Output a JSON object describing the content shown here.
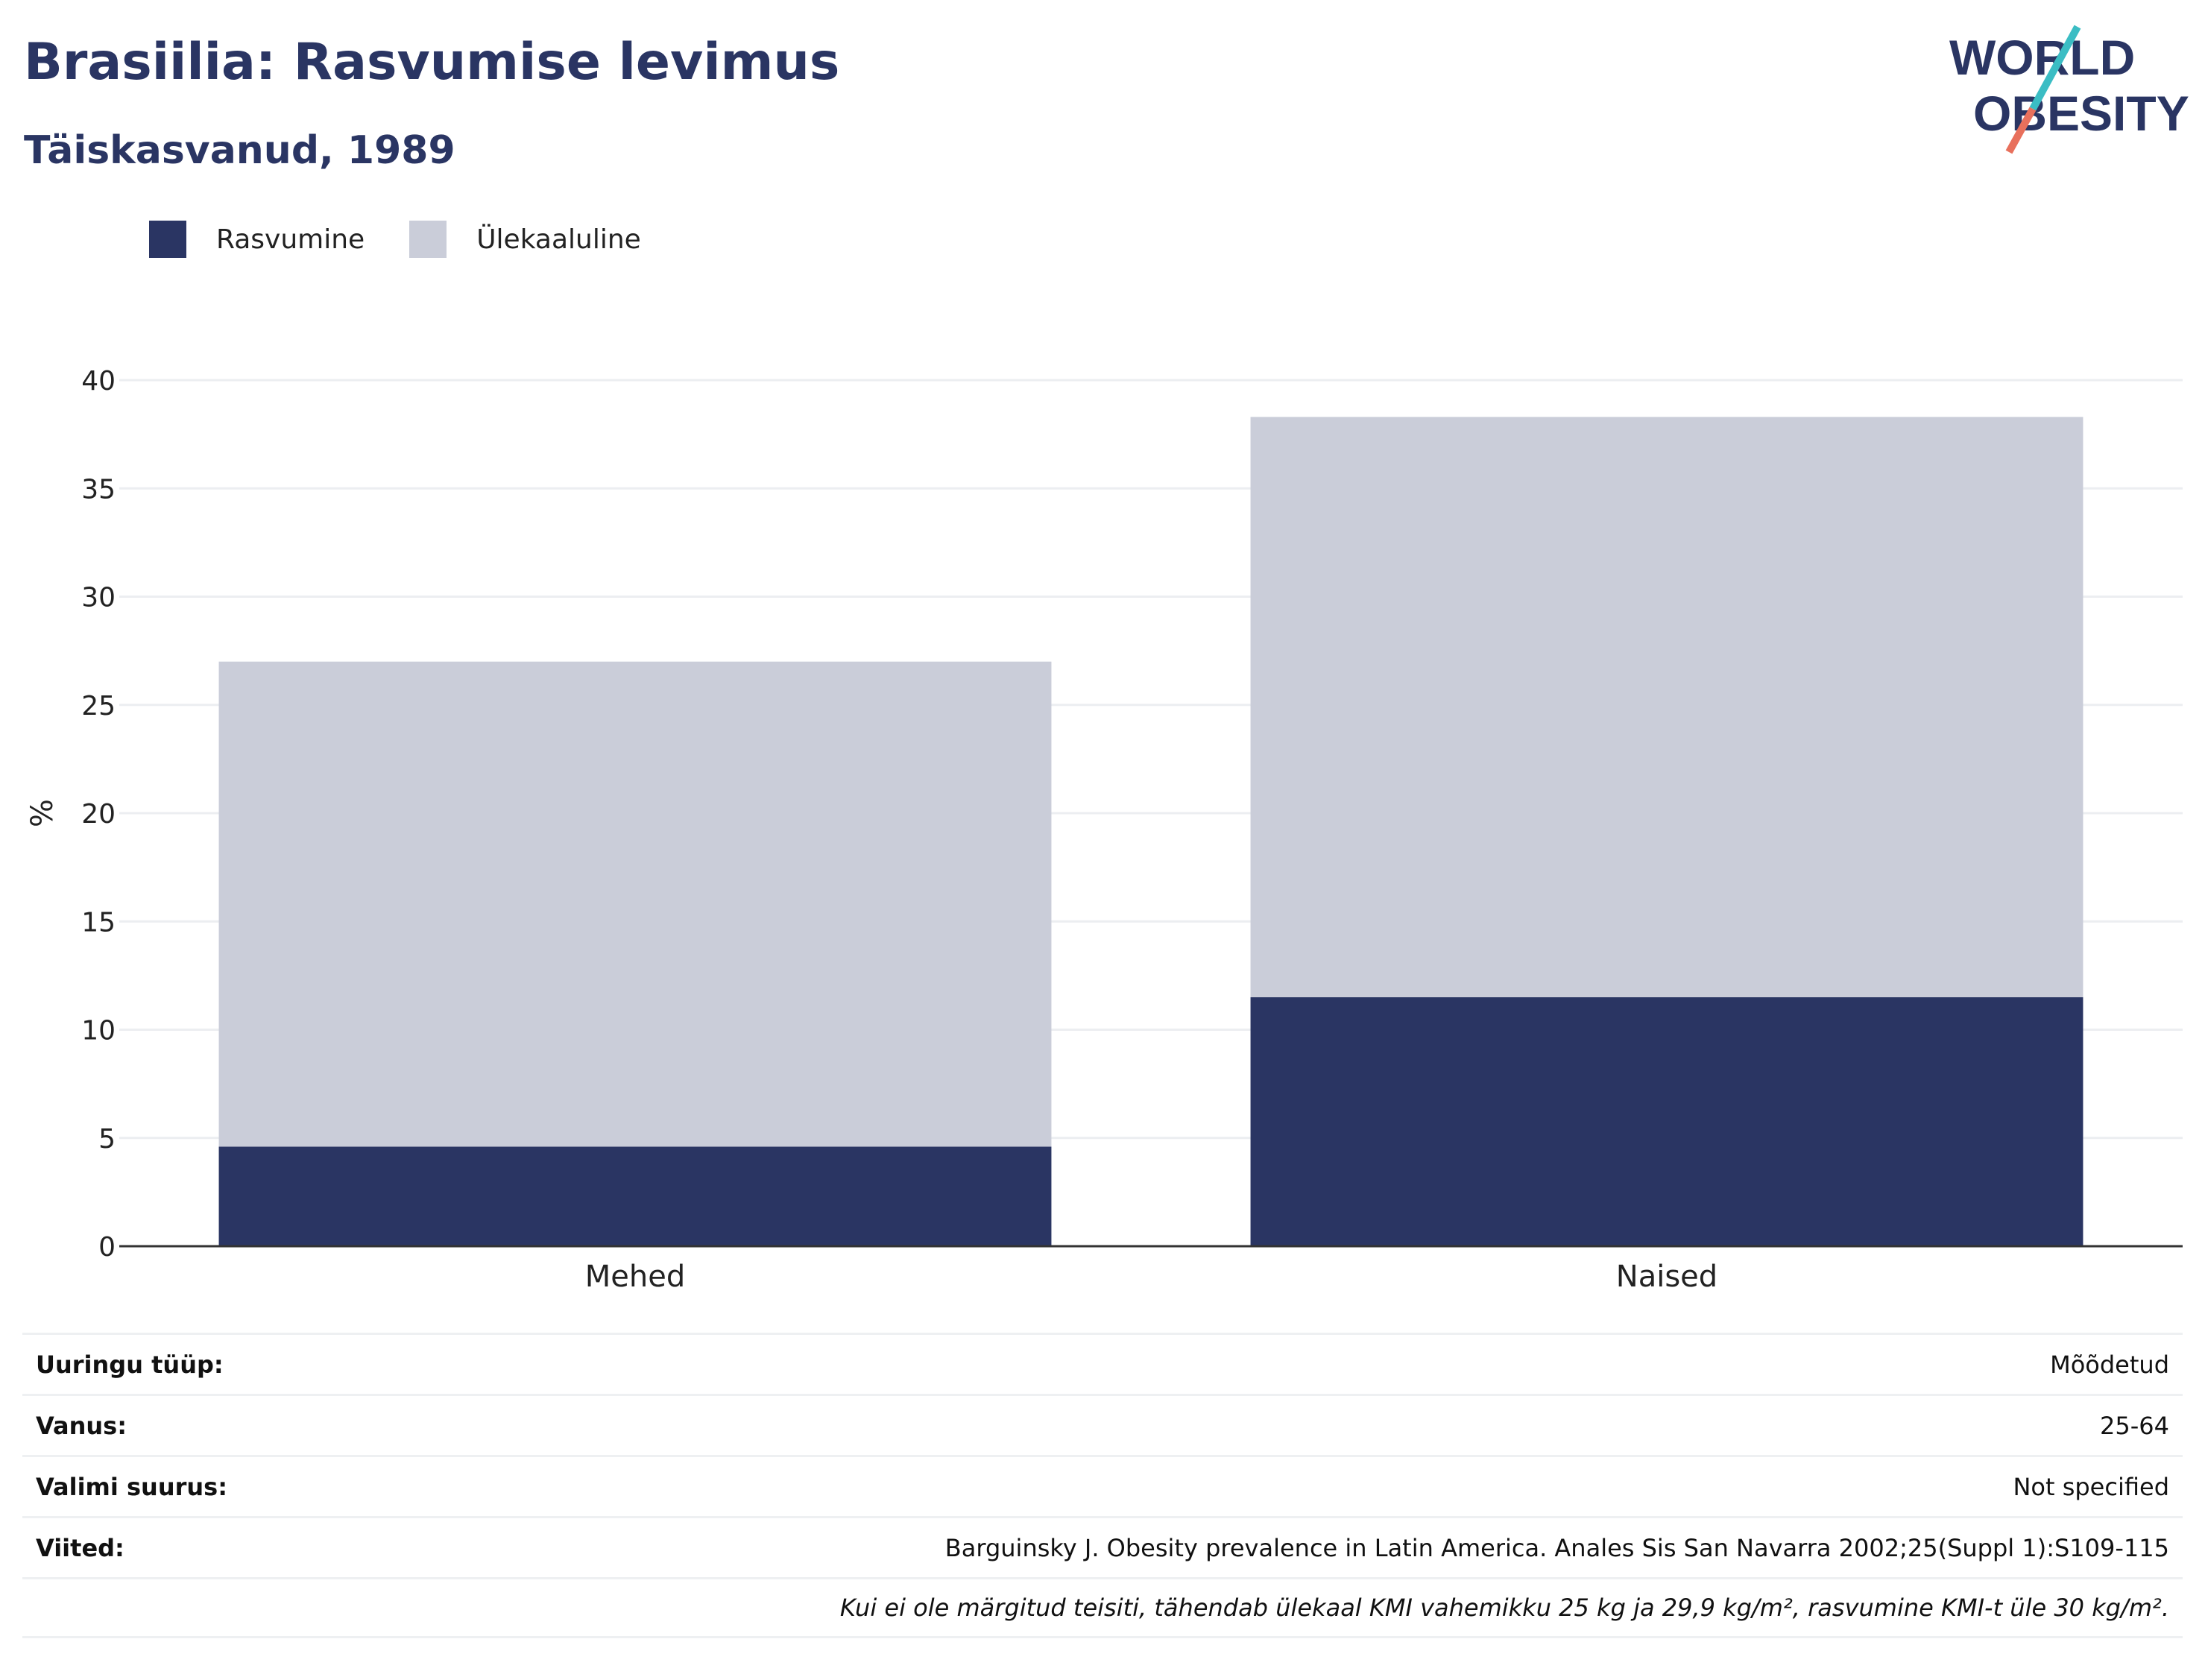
{
  "header": {
    "title": "Brasiilia: Rasvumise levimus",
    "subtitle": "Täiskasvanud, 1989",
    "logo_line1": "WORLD",
    "logo_line2": "OBESITY"
  },
  "colors": {
    "obesity": "#2a3563",
    "overweight": "#cacdd9",
    "title": "#2a3563",
    "logo_teal": "#3bbdc4",
    "logo_coral": "#e8705c"
  },
  "chart_data": {
    "type": "bar",
    "stacked": true,
    "categories": [
      "Mehed",
      "Naised"
    ],
    "series": [
      {
        "name": "Rasvumine",
        "values": [
          4.6,
          11.5
        ]
      },
      {
        "name": "Ülekaaluline",
        "values": [
          22.4,
          26.8
        ]
      }
    ],
    "ylabel": "%",
    "ylim": [
      0,
      40
    ],
    "yticks": [
      "0",
      "5",
      "10",
      "15",
      "20",
      "25",
      "30",
      "35",
      "40"
    ],
    "grid": true,
    "legend": "top-left"
  },
  "info": [
    {
      "key": "Uuringu tüüp:",
      "value": "Mõõdetud"
    },
    {
      "key": "Vanus:",
      "value": "25-64"
    },
    {
      "key": "Valimi suurus:",
      "value": "Not specified"
    },
    {
      "key": "Viited:",
      "value": "Barguinsky J. Obesity prevalence in Latin America. Anales Sis San Navarra 2002;25(Suppl 1):S109-115"
    }
  ],
  "note": "Kui ei ole märgitud teisiti, tähendab ülekaal KMI vahemikku 25 kg ja 29,9 kg/m², rasvumine KMI-t üle 30 kg/m²."
}
